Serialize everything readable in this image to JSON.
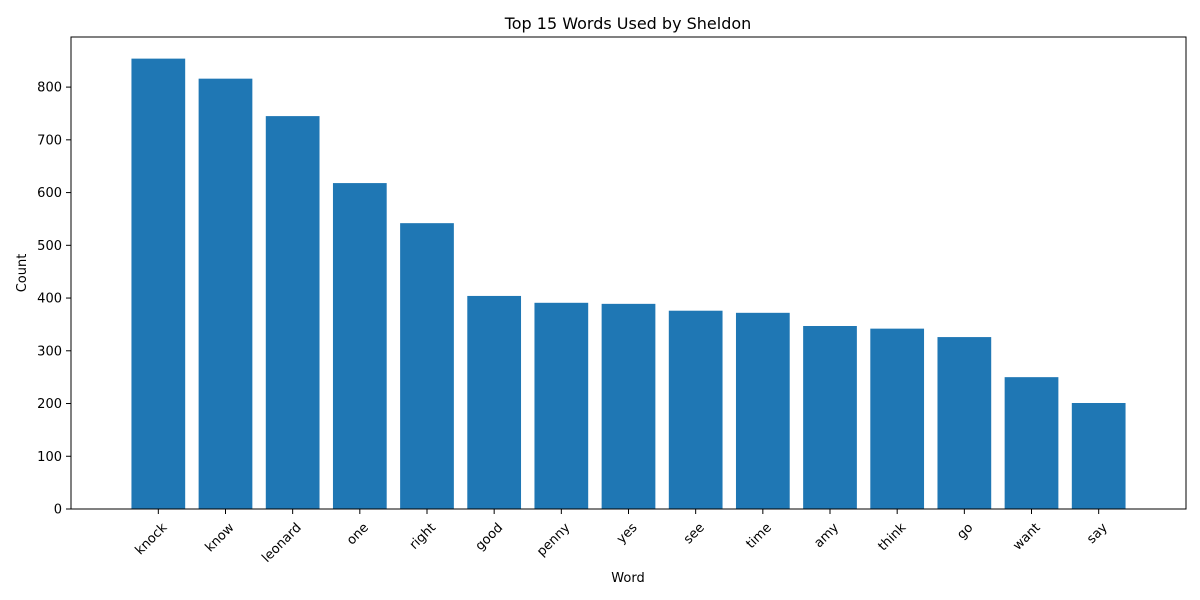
{
  "chart_data": {
    "type": "bar",
    "title": "Top 15 Words Used by Sheldon",
    "xlabel": "Word",
    "ylabel": "Count",
    "categories": [
      "knock",
      "know",
      "leonard",
      "one",
      "right",
      "good",
      "penny",
      "yes",
      "see",
      "time",
      "amy",
      "think",
      "go",
      "want",
      "say"
    ],
    "values": [
      854,
      816,
      745,
      618,
      542,
      404,
      391,
      389,
      376,
      372,
      347,
      342,
      326,
      250,
      201
    ],
    "ylim": [
      0,
      895
    ],
    "yticks": [
      0,
      100,
      200,
      300,
      400,
      500,
      600,
      700,
      800
    ],
    "bar_color": "#1f77b4",
    "grid": false,
    "legend": "none",
    "xtick_rotation_deg": 45
  }
}
